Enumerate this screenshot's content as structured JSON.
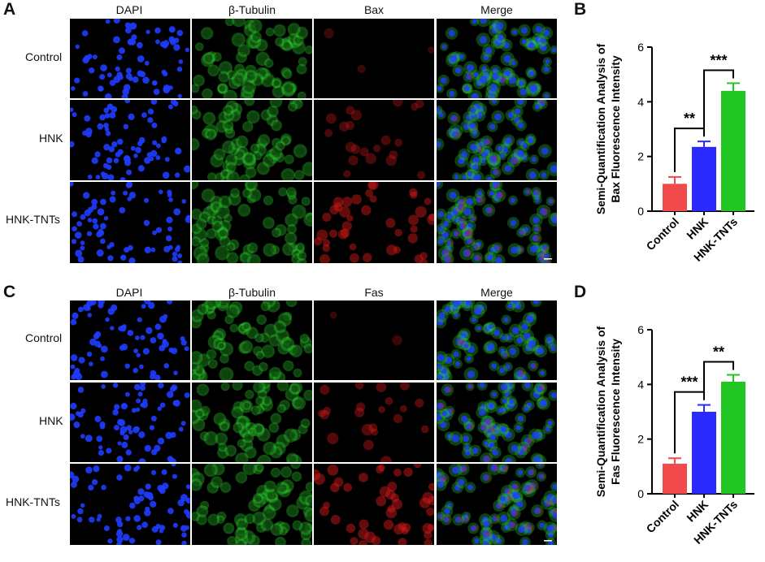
{
  "panels": [
    {
      "letter": "A",
      "columns": [
        "DAPI",
        "β-Tubulin",
        "Bax",
        "Merge"
      ],
      "rows": [
        "Control",
        "HNK",
        "HNK-TNTs"
      ]
    },
    {
      "letter": "C",
      "columns": [
        "DAPI",
        "β-Tubulin",
        "Fas",
        "Merge"
      ],
      "rows": [
        "Control",
        "HNK",
        "HNK-TNTs"
      ]
    }
  ],
  "colors": {
    "DAPI": "#1f3cff",
    "β-Tubulin": "#2fd62f",
    "marker": "#d81a1a",
    "Control": "#f04a4a",
    "HNK": "#2a2aff",
    "HNK-TNTs": "#22c622"
  },
  "chart_data": [
    {
      "letter": "B",
      "type": "bar",
      "categories": [
        "Control",
        "HNK",
        "HNK-TNTs"
      ],
      "values": [
        1.0,
        2.35,
        4.4
      ],
      "errors": [
        0.25,
        0.2,
        0.28
      ],
      "ylabel_line1": "Semi-Quantification Analysis of",
      "ylabel_line2": "Bax Fluorescence Intensity",
      "ylim": [
        0,
        6
      ],
      "yticks": [
        0,
        2,
        4,
        6
      ],
      "significance": [
        {
          "from": 0,
          "to": 1,
          "label": "**"
        },
        {
          "from": 1,
          "to": 2,
          "label": "***"
        }
      ]
    },
    {
      "letter": "D",
      "type": "bar",
      "categories": [
        "Control",
        "HNK",
        "HNK-TNTs"
      ],
      "values": [
        1.1,
        3.0,
        4.1
      ],
      "errors": [
        0.2,
        0.25,
        0.25
      ],
      "ylabel_line1": "Semi-Quantification Analysis of",
      "ylabel_line2": "Fas Fluorescence Intensity",
      "ylim": [
        0,
        6
      ],
      "yticks": [
        0,
        2,
        4,
        6
      ],
      "significance": [
        {
          "from": 0,
          "to": 1,
          "label": "***"
        },
        {
          "from": 1,
          "to": 2,
          "label": "**"
        }
      ]
    }
  ]
}
